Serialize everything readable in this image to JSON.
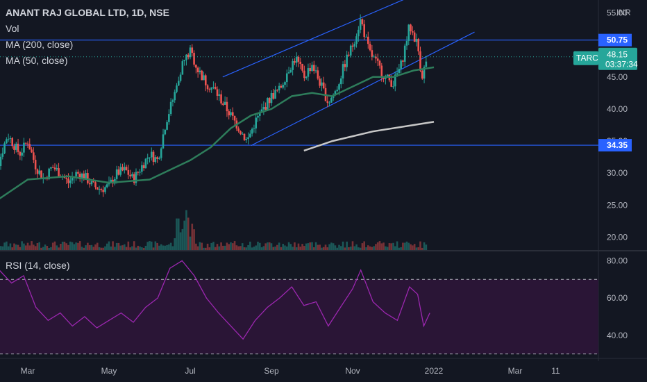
{
  "legend": {
    "title": "ANANT RAJ GLOBAL LTD, 1D, NSE",
    "vol": "Vol",
    "ma200": "MA (200, close)",
    "ma50": "MA (50, close)",
    "rsi": "RSI (14, close)"
  },
  "price_axis": {
    "currency": "INR",
    "ticks": [
      "55.00",
      "45.00",
      "40.00",
      "35.00",
      "30.00",
      "25.00",
      "20.00"
    ],
    "hline_labels": [
      "50.75",
      "34.35"
    ],
    "last_price": "48.15",
    "countdown": "03:37:34",
    "drawing_tag": "TARC"
  },
  "rsi_axis": {
    "ticks": [
      "80.00",
      "60.00",
      "40.00"
    ]
  },
  "time_axis": {
    "ticks": [
      "Mar",
      "May",
      "Jul",
      "Sep",
      "Nov",
      "2022",
      "Mar",
      "11"
    ]
  },
  "colors": {
    "background": "#131722",
    "up": "#26a69a",
    "down": "#ef5350",
    "ma50": "#2e7d5b",
    "ma200": "#c8c8c8",
    "hline": "#2962ff",
    "channel": "#2962ff",
    "rsi": "#9c27b0",
    "rsi_band": "#2a1536",
    "last_price_badge": "#26a69a",
    "hline_badge": "#2962ff"
  },
  "chart_data": {
    "type": "candlestick",
    "y_range": [
      18,
      57
    ],
    "rsi_range": [
      28,
      85
    ],
    "hlines": [
      50.75,
      34.35
    ],
    "rsi_levels": [
      70,
      30
    ],
    "close_path": [
      {
        "month": 2.0,
        "close": 23
      },
      {
        "month": 2.2,
        "close": 30
      },
      {
        "month": 2.5,
        "close": 36
      },
      {
        "month": 2.8,
        "close": 33
      },
      {
        "month": 3.0,
        "close": 35
      },
      {
        "month": 3.2,
        "close": 31
      },
      {
        "month": 3.4,
        "close": 29
      },
      {
        "month": 3.6,
        "close": 31
      },
      {
        "month": 3.8,
        "close": 30
      },
      {
        "month": 4.0,
        "close": 28.5
      },
      {
        "month": 4.2,
        "close": 30
      },
      {
        "month": 4.4,
        "close": 29.5
      },
      {
        "month": 4.6,
        "close": 28
      },
      {
        "month": 4.8,
        "close": 27.5
      },
      {
        "month": 5.0,
        "close": 28
      },
      {
        "month": 5.2,
        "close": 30
      },
      {
        "month": 5.4,
        "close": 30.5
      },
      {
        "month": 5.6,
        "close": 29
      },
      {
        "month": 5.8,
        "close": 31
      },
      {
        "month": 6.0,
        "close": 33
      },
      {
        "month": 6.2,
        "close": 32
      },
      {
        "month": 6.4,
        "close": 38
      },
      {
        "month": 6.6,
        "close": 42
      },
      {
        "month": 6.8,
        "close": 47
      },
      {
        "month": 7.0,
        "close": 49
      },
      {
        "month": 7.2,
        "close": 46
      },
      {
        "month": 7.4,
        "close": 44
      },
      {
        "month": 7.6,
        "close": 43
      },
      {
        "month": 7.8,
        "close": 41
      },
      {
        "month": 8.0,
        "close": 39
      },
      {
        "month": 8.2,
        "close": 37
      },
      {
        "month": 8.4,
        "close": 35
      },
      {
        "month": 8.6,
        "close": 38
      },
      {
        "month": 8.8,
        "close": 40
      },
      {
        "month": 9.0,
        "close": 42
      },
      {
        "month": 9.2,
        "close": 43
      },
      {
        "month": 9.4,
        "close": 46
      },
      {
        "month": 9.6,
        "close": 48
      },
      {
        "month": 9.8,
        "close": 45
      },
      {
        "month": 10.0,
        "close": 47
      },
      {
        "month": 10.2,
        "close": 44
      },
      {
        "month": 10.4,
        "close": 41
      },
      {
        "month": 10.6,
        "close": 43
      },
      {
        "month": 10.8,
        "close": 47
      },
      {
        "month": 11.0,
        "close": 50
      },
      {
        "month": 11.2,
        "close": 54
      },
      {
        "month": 11.4,
        "close": 49
      },
      {
        "month": 11.6,
        "close": 47
      },
      {
        "month": 11.8,
        "close": 45
      },
      {
        "month": 12.0,
        "close": 44
      },
      {
        "month": 12.2,
        "close": 47
      },
      {
        "month": 12.4,
        "close": 53
      },
      {
        "month": 12.6,
        "close": 50
      },
      {
        "month": 12.7,
        "close": 45
      },
      {
        "month": 12.85,
        "close": 48.15
      }
    ],
    "ma50": [
      {
        "month": 2.3,
        "close": 26
      },
      {
        "month": 3.0,
        "close": 29
      },
      {
        "month": 4.0,
        "close": 29.5
      },
      {
        "month": 5.0,
        "close": 28.5
      },
      {
        "month": 6.0,
        "close": 29
      },
      {
        "month": 7.0,
        "close": 32
      },
      {
        "month": 7.5,
        "close": 34
      },
      {
        "month": 8.0,
        "close": 37
      },
      {
        "month": 8.5,
        "close": 39
      },
      {
        "month": 9.0,
        "close": 40
      },
      {
        "month": 9.5,
        "close": 42
      },
      {
        "month": 10.0,
        "close": 42.5
      },
      {
        "month": 10.5,
        "close": 42
      },
      {
        "month": 11.0,
        "close": 43.5
      },
      {
        "month": 11.5,
        "close": 45
      },
      {
        "month": 12.0,
        "close": 45
      },
      {
        "month": 12.5,
        "close": 46
      },
      {
        "month": 13.0,
        "close": 46.5
      }
    ],
    "ma200": [
      {
        "month": 9.8,
        "close": 33.5
      },
      {
        "month": 10.5,
        "close": 35
      },
      {
        "month": 11.5,
        "close": 36.5
      },
      {
        "month": 12.5,
        "close": 37.5
      },
      {
        "month": 13.0,
        "close": 38
      }
    ],
    "rsi": [
      {
        "month": 2.0,
        "close": 55
      },
      {
        "month": 2.3,
        "close": 75
      },
      {
        "month": 2.6,
        "close": 68
      },
      {
        "month": 2.9,
        "close": 72
      },
      {
        "month": 3.2,
        "close": 55
      },
      {
        "month": 3.5,
        "close": 48
      },
      {
        "month": 3.8,
        "close": 52
      },
      {
        "month": 4.1,
        "close": 45
      },
      {
        "month": 4.4,
        "close": 50
      },
      {
        "month": 4.7,
        "close": 44
      },
      {
        "month": 5.0,
        "close": 48
      },
      {
        "month": 5.3,
        "close": 52
      },
      {
        "month": 5.6,
        "close": 47
      },
      {
        "month": 5.9,
        "close": 55
      },
      {
        "method": "x",
        "month": 6.2,
        "close": 60
      },
      {
        "month": 6.5,
        "close": 76
      },
      {
        "month": 6.8,
        "close": 80
      },
      {
        "month": 7.1,
        "close": 72
      },
      {
        "month": 7.4,
        "close": 60
      },
      {
        "month": 7.7,
        "close": 52
      },
      {
        "month": 8.0,
        "close": 45
      },
      {
        "month": 8.3,
        "close": 38
      },
      {
        "month": 8.6,
        "close": 48
      },
      {
        "month": 8.9,
        "close": 55
      },
      {
        "month": 9.2,
        "close": 60
      },
      {
        "month": 9.5,
        "close": 66
      },
      {
        "month": 9.8,
        "close": 56
      },
      {
        "month": 10.1,
        "close": 58
      },
      {
        "month": 10.4,
        "close": 45
      },
      {
        "month": 10.7,
        "close": 55
      },
      {
        "month": 11.0,
        "close": 65
      },
      {
        "month": 11.2,
        "close": 75
      },
      {
        "month": 11.5,
        "close": 58
      },
      {
        "month": 11.8,
        "close": 52
      },
      {
        "month": 12.1,
        "close": 48
      },
      {
        "month": 12.4,
        "close": 66
      },
      {
        "month": 12.6,
        "close": 62
      },
      {
        "month": 12.75,
        "close": 45
      },
      {
        "month": 12.9,
        "close": 52
      }
    ],
    "channel_lines": [
      {
        "from": {
          "month": 8.5,
          "close": 34.3
        },
        "to": {
          "month": 14.0,
          "close": 52
        }
      },
      {
        "from": {
          "month": 7.8,
          "close": 45
        },
        "to": {
          "month": 12.6,
          "close": 58
        }
      }
    ]
  }
}
